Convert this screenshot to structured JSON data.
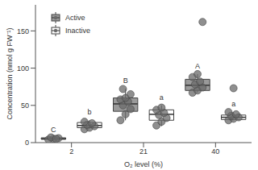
{
  "chart_data": {
    "type": "box",
    "x_label": "O₂ level (%)",
    "y_label": "Concentration (nmol g FW⁻¹)",
    "categories": [
      "2",
      "21",
      "40"
    ],
    "ylim": [
      0,
      185
    ],
    "yticks": [
      0,
      50,
      100,
      150
    ],
    "legend": "top-left",
    "series": [
      {
        "name": "Active",
        "color": "#9a9a9a",
        "boxes": [
          {
            "whisker_low": 4,
            "q1": 4.5,
            "median": 5,
            "q3": 6.5,
            "whisker_high": 7
          },
          {
            "whisker_low": 30,
            "q1": 42,
            "median": 52,
            "q3": 60,
            "whisker_high": 72
          },
          {
            "whisker_low": 67,
            "q1": 70,
            "median": 77,
            "q3": 85,
            "whisker_high": 92
          }
        ],
        "points": [
          [
            4,
            5,
            6,
            7,
            5
          ],
          [
            30,
            38,
            45,
            50,
            55,
            58,
            60,
            65,
            72
          ],
          [
            67,
            70,
            74,
            78,
            82,
            88,
            92,
            162
          ]
        ],
        "letters": [
          "C",
          "B",
          "A"
        ]
      },
      {
        "name": "Inactive",
        "color": "#ffffff",
        "boxes": [
          {
            "whisker_low": 18,
            "q1": 20,
            "median": 23,
            "q3": 27,
            "whisker_high": 30
          },
          {
            "whisker_low": 22,
            "q1": 30,
            "median": 38,
            "q3": 44,
            "whisker_high": 50
          },
          {
            "whisker_low": 30,
            "q1": 31,
            "median": 34,
            "q3": 37,
            "whisker_high": 41
          }
        ],
        "points": [
          [
            18,
            20,
            22,
            24,
            26,
            28
          ],
          [
            23,
            28,
            33,
            37,
            40,
            44,
            47
          ],
          [
            30,
            32,
            34,
            36,
            38,
            41,
            73
          ]
        ],
        "letters": [
          "b",
          "a",
          "a"
        ]
      }
    ]
  }
}
